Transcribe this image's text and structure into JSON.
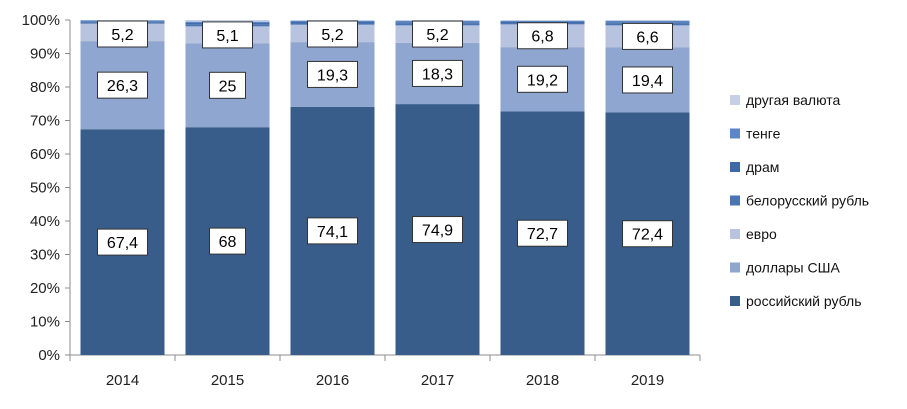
{
  "chart_data": {
    "type": "bar",
    "stacked": "percent",
    "categories": [
      "2014",
      "2015",
      "2016",
      "2017",
      "2018",
      "2019"
    ],
    "ylim": [
      0,
      100
    ],
    "yticks": [
      0,
      10,
      20,
      30,
      40,
      50,
      60,
      70,
      80,
      90,
      100
    ],
    "ytick_labels": [
      "0%",
      "10%",
      "20%",
      "30%",
      "40%",
      "50%",
      "60%",
      "70%",
      "80%",
      "90%",
      "100%"
    ],
    "grid": false,
    "legend_position": "right",
    "series": [
      {
        "name": "российский рубль",
        "color": "#385d8a",
        "values": [
          67.4,
          68,
          74.1,
          74.9,
          72.7,
          72.4
        ],
        "labels": [
          "67,4",
          "68",
          "74,1",
          "74,9",
          "72,7",
          "72,4"
        ]
      },
      {
        "name": "доллары США",
        "color": "#8ea6d0",
        "values": [
          26.3,
          25,
          19.3,
          18.3,
          19.2,
          19.4
        ],
        "labels": [
          "26,3",
          "25",
          "19,3",
          "18,3",
          "19,2",
          "19,4"
        ]
      },
      {
        "name": "евро",
        "color": "#b7c3df",
        "values": [
          5.2,
          5.1,
          5.2,
          5.2,
          6.8,
          6.6
        ],
        "labels": [
          "5,2",
          "5,1",
          "5,2",
          "5,2",
          "6,8",
          "6,6"
        ]
      },
      {
        "name": "белорусский рубль",
        "color": "#4a74b3",
        "values": [
          0.4,
          0.6,
          0.5,
          0.5,
          0.4,
          0.5
        ],
        "labels": []
      },
      {
        "name": "драм",
        "color": "#3e68a8",
        "values": [
          0.3,
          0.4,
          0.3,
          0.4,
          0.3,
          0.4
        ],
        "labels": []
      },
      {
        "name": "тенге",
        "color": "#5a87c5",
        "values": [
          0.3,
          0.4,
          0.3,
          0.4,
          0.3,
          0.4
        ],
        "labels": []
      },
      {
        "name": "другая валюта",
        "color": "#c5d0e6",
        "values": [
          0.1,
          0.5,
          0.3,
          0.3,
          0.3,
          0.3
        ],
        "labels": []
      }
    ],
    "legend_order": [
      6,
      5,
      4,
      3,
      2,
      1,
      0
    ]
  }
}
